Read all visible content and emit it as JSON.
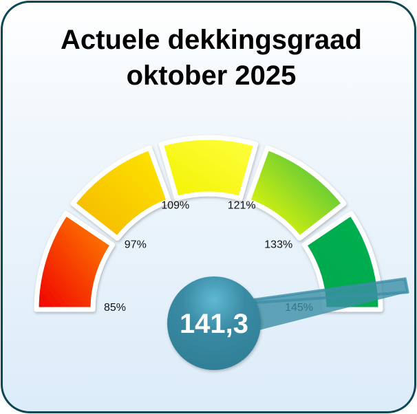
{
  "chart_data": {
    "type": "gauge",
    "title": [
      "Actuele dekkingsgraad",
      "oktober 2025"
    ],
    "range": [
      85,
      145
    ],
    "tick_labels": [
      "85%",
      "97%",
      "109%",
      "121%",
      "133%",
      "145%"
    ],
    "ticks": [
      85,
      97,
      109,
      121,
      133,
      145
    ],
    "bands": [
      {
        "from": 85,
        "to": 97,
        "color": "#f00000",
        "color2": "#ff8a00"
      },
      {
        "from": 97,
        "to": 109,
        "color": "#f4b400",
        "color2": "#ffe800"
      },
      {
        "from": 109,
        "to": 121,
        "color": "#f2f200",
        "color2": "#ffff40"
      },
      {
        "from": 121,
        "to": 133,
        "color": "#ffff00",
        "color2": "#2fb84a"
      },
      {
        "from": 133,
        "to": 145,
        "color": "#00a84c",
        "color2": "#00b050"
      }
    ],
    "value": 141.3,
    "value_label": "141,3",
    "needle_color": "#3c8ea6"
  }
}
